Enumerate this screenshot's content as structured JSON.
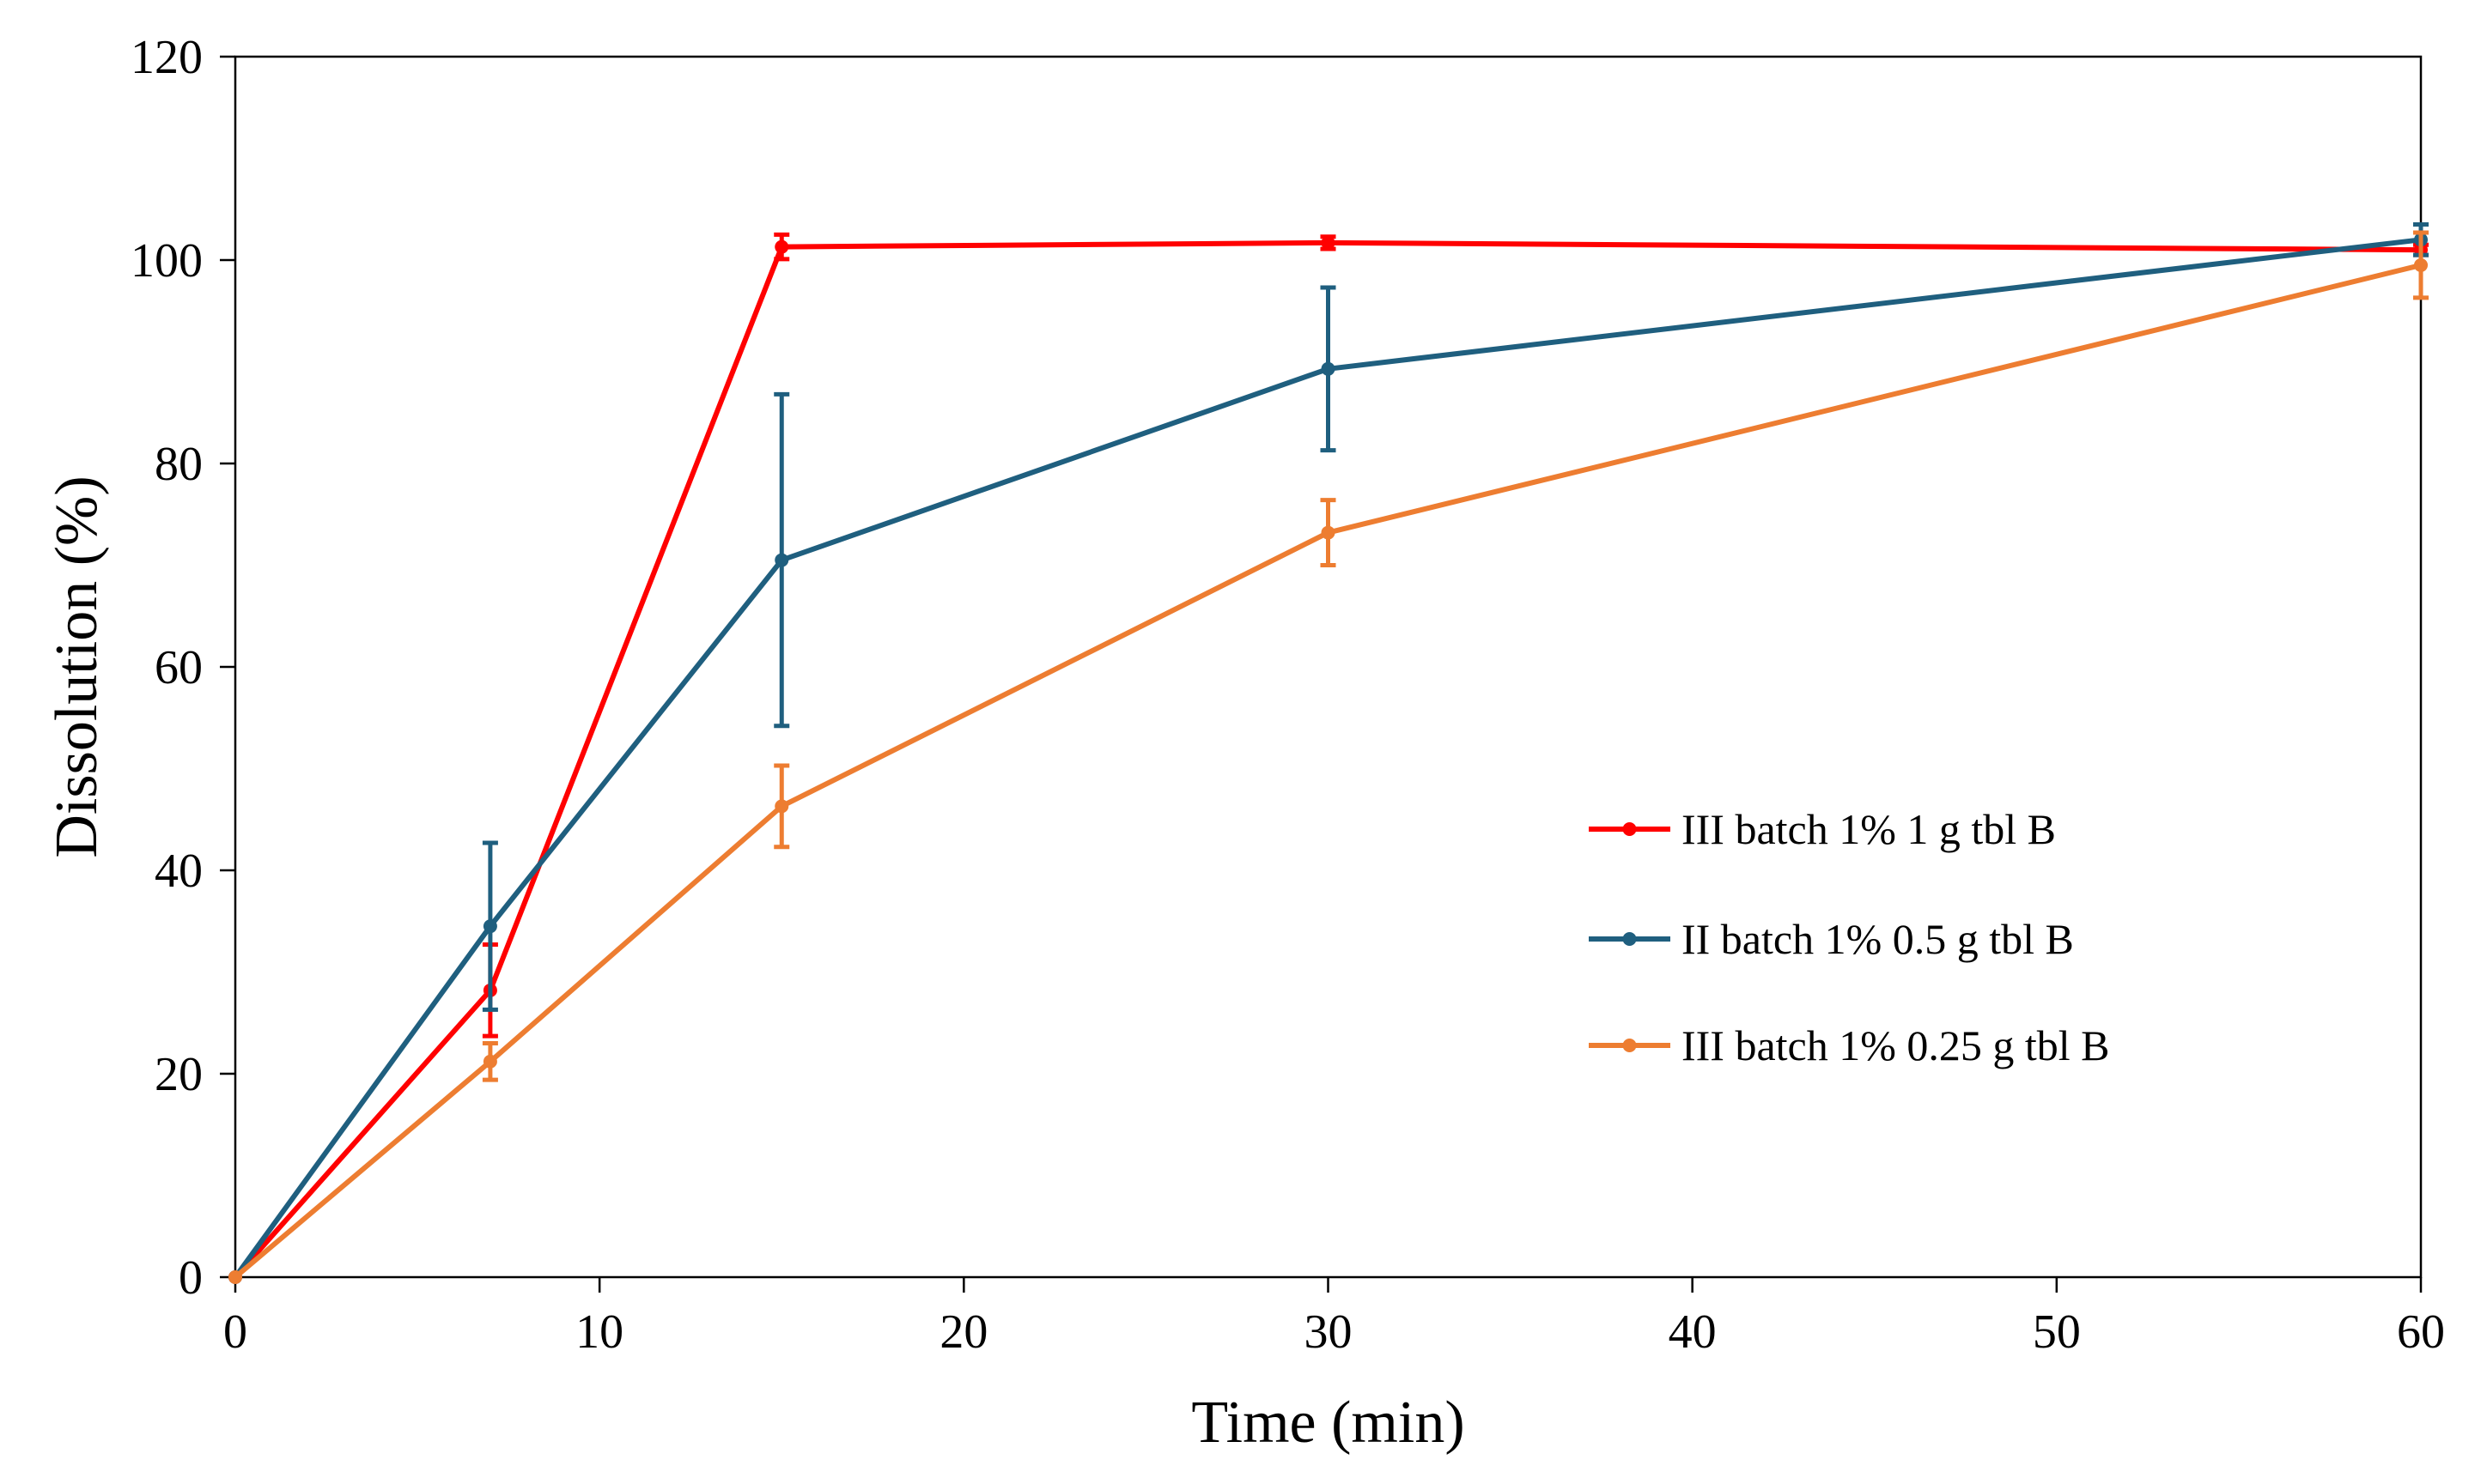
{
  "chart_data": {
    "type": "line",
    "title": "",
    "xlabel": "Time (min)",
    "ylabel": "Dissolution (%)",
    "xlim": [
      0,
      60
    ],
    "ylim": [
      0,
      120
    ],
    "xticks": [
      0,
      10,
      20,
      30,
      40,
      50,
      60
    ],
    "yticks": [
      0,
      20,
      40,
      60,
      80,
      100,
      120
    ],
    "xtick_labels": [
      "0",
      "10",
      "20",
      "30",
      "40",
      "50",
      "60"
    ],
    "ytick_labels": [
      "0",
      "20",
      "40",
      "60",
      "80",
      "100",
      "120"
    ],
    "grid": false,
    "legend_position": "right",
    "series": [
      {
        "name": "III batch 1% 1 g tbl B",
        "color": "#ff0000",
        "x": [
          0,
          7,
          15,
          30,
          60
        ],
        "y": [
          0,
          28.2,
          101.3,
          101.7,
          101.0
        ],
        "error": [
          0,
          4.5,
          1.2,
          0.6,
          0.5
        ]
      },
      {
        "name": "II batch 1% 0.5 g tbl B",
        "color": "#1f5f7f",
        "x": [
          0,
          7,
          15,
          30,
          60
        ],
        "y": [
          0,
          34.5,
          70.5,
          89.3,
          102.0
        ],
        "error": [
          0,
          8.2,
          16.3,
          8.0,
          1.5
        ]
      },
      {
        "name": "III batch 1% 0.25 g tbl B",
        "color": "#ed7d31",
        "x": [
          0,
          7,
          15,
          30,
          60
        ],
        "y": [
          0,
          21.2,
          46.3,
          73.2,
          99.5
        ],
        "error": [
          0,
          1.8,
          4.0,
          3.2,
          3.2
        ]
      }
    ]
  }
}
